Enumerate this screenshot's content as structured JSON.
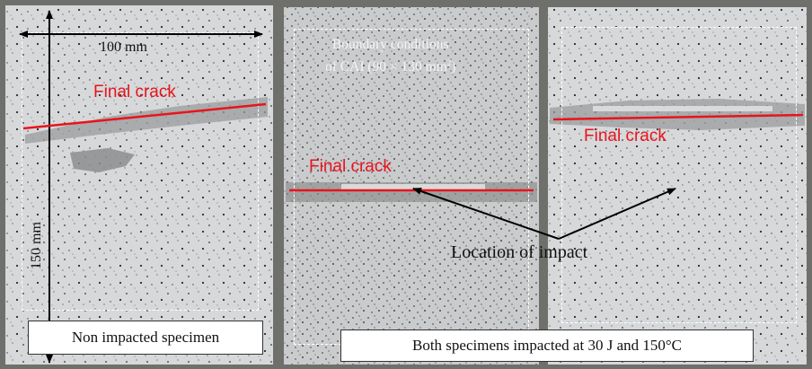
{
  "annotations": {
    "width_dim": "100 mm",
    "height_dim": "150 mm",
    "boundary_line1": "Boundary conditions",
    "boundary_line2_prefix": "of CAI (90 × 130 mm",
    "boundary_sup": "2",
    "boundary_line2_suffix": ")",
    "final_crack_1": "Final crack",
    "final_crack_2": "Final crack",
    "final_crack_3": "Final crack",
    "impact_label": "Location of impact",
    "caption_left": "Non impacted specimen",
    "caption_right": "Both specimens impacted at 30 J and 150°C"
  },
  "colors": {
    "crack": "#e8141c",
    "panel_face": "#d9dbdd",
    "background": "#6f6f6b",
    "dashed_frame": "#ffffff"
  }
}
